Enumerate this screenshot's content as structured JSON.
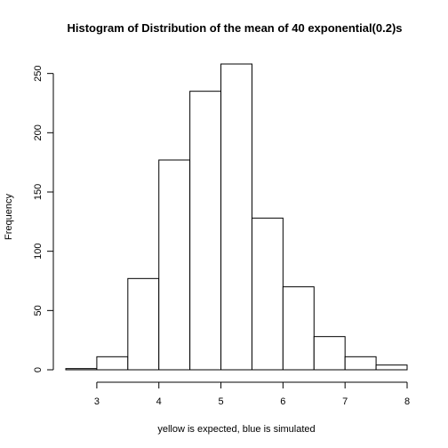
{
  "chart_data": {
    "type": "bar",
    "title": "Histogram of Distribution of the mean of 40 exponential(0.2)s",
    "xlabel": "yellow is expected, blue is simulated",
    "ylabel": "Frequency",
    "bins": [
      {
        "start": 2.5,
        "end": 3.0,
        "count": 1
      },
      {
        "start": 3.0,
        "end": 3.5,
        "count": 11
      },
      {
        "start": 3.5,
        "end": 4.0,
        "count": 77
      },
      {
        "start": 4.0,
        "end": 4.5,
        "count": 177
      },
      {
        "start": 4.5,
        "end": 5.0,
        "count": 235
      },
      {
        "start": 5.0,
        "end": 5.5,
        "count": 258
      },
      {
        "start": 5.5,
        "end": 6.0,
        "count": 128
      },
      {
        "start": 6.0,
        "end": 6.5,
        "count": 70
      },
      {
        "start": 6.5,
        "end": 7.0,
        "count": 28
      },
      {
        "start": 7.0,
        "end": 7.5,
        "count": 11
      },
      {
        "start": 7.5,
        "end": 8.0,
        "count": 4
      }
    ],
    "xlim": [
      2.5,
      8.0
    ],
    "ylim": [
      0,
      258
    ],
    "xticks": [
      3,
      4,
      5,
      6,
      7,
      8
    ],
    "yticks": [
      0,
      50,
      100,
      150,
      200,
      250
    ],
    "grid": false,
    "legend": "none"
  }
}
